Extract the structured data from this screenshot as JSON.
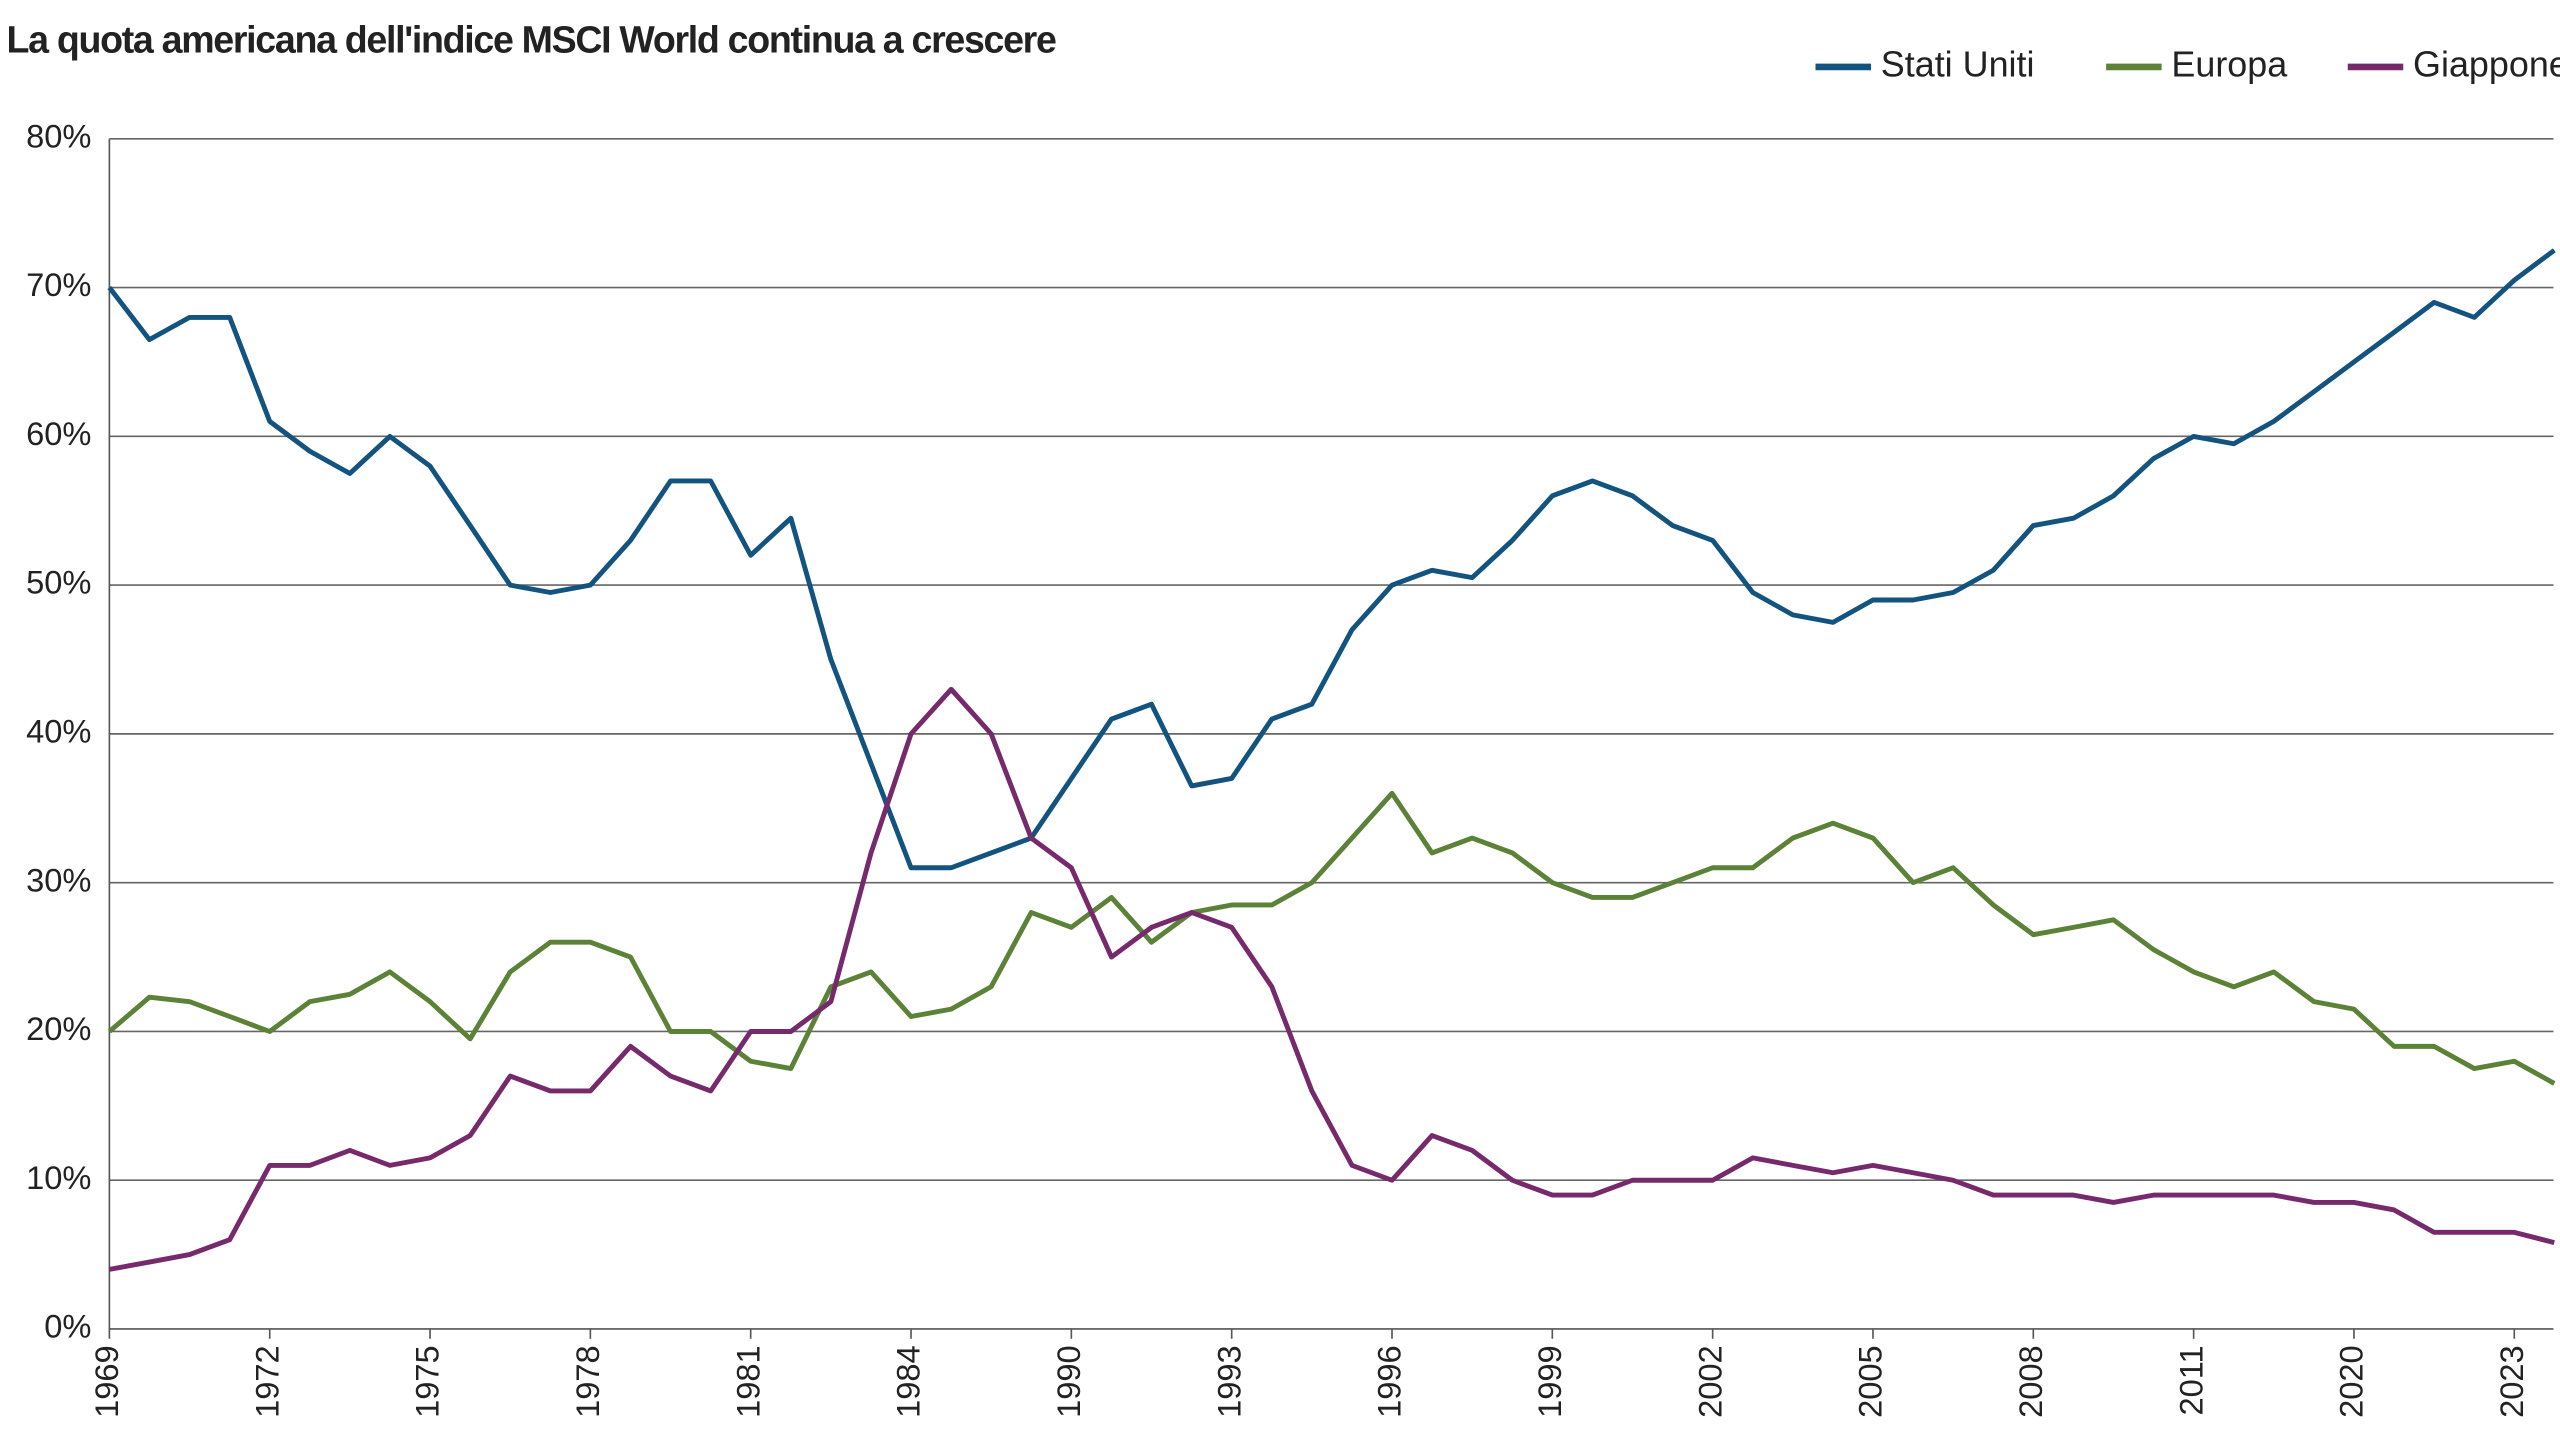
{
  "chart_data": {
    "type": "line",
    "title": "La quota americana dell'indice MSCI World continua a crescere",
    "categories": [
      "1969",
      null,
      null,
      null,
      "1972",
      null,
      null,
      null,
      "1975",
      null,
      null,
      null,
      "1978",
      null,
      null,
      null,
      "1981",
      null,
      null,
      null,
      "1984",
      null,
      null,
      null,
      "1990",
      null,
      null,
      null,
      "1993",
      null,
      null,
      null,
      "1996",
      null,
      null,
      null,
      "1999",
      null,
      null,
      null,
      "2002",
      null,
      null,
      null,
      "2005",
      null,
      null,
      null,
      "2008",
      null,
      null,
      null,
      "2011",
      null,
      null,
      null,
      "2020",
      null,
      null,
      null,
      "2023",
      null
    ],
    "series": [
      {
        "name": "Stati Uniti",
        "color": "#13537f",
        "values": [
          70,
          66.5,
          68,
          68,
          61,
          59,
          57.5,
          60,
          58,
          54,
          50,
          49.5,
          50,
          53,
          57,
          57,
          52,
          54.5,
          45,
          38,
          31,
          31,
          32,
          33,
          37,
          41,
          42,
          36.5,
          37,
          41,
          42,
          47,
          50,
          51,
          50.5,
          53,
          56,
          57,
          56,
          54,
          53,
          49.5,
          48,
          47.5,
          49,
          49,
          49.5,
          51,
          54,
          54.5,
          56,
          58.5,
          60,
          59.5,
          61,
          63,
          65,
          67,
          69,
          68,
          70.5,
          72.5
        ]
      },
      {
        "name": "Europa",
        "color": "#5b8236",
        "values": [
          20,
          22.3,
          22,
          21,
          20,
          22,
          22.5,
          24,
          22,
          19.5,
          24,
          26,
          26,
          25,
          20,
          20,
          18,
          17.5,
          23,
          24,
          21,
          21.5,
          23,
          28,
          27,
          29,
          26,
          28,
          28.5,
          28.5,
          30,
          33,
          36,
          32,
          33,
          32,
          30,
          29,
          29,
          30,
          31,
          31,
          33,
          34,
          33,
          30,
          31,
          28.5,
          26.5,
          27,
          27.5,
          25.5,
          24,
          23,
          24,
          22,
          21.5,
          19,
          19,
          17.5,
          18,
          16.5
        ]
      },
      {
        "name": "Giappone",
        "color": "#772a6b",
        "values": [
          4,
          4.5,
          5,
          6,
          11,
          11,
          12,
          11,
          11.5,
          13,
          17,
          16,
          16,
          19,
          17,
          16,
          20,
          20,
          22,
          32,
          40,
          43,
          40,
          33,
          31,
          25,
          27,
          28,
          27,
          23,
          16,
          11,
          10,
          13,
          12,
          10,
          9,
          9,
          10,
          10,
          10,
          11.5,
          11,
          10.5,
          11,
          10.5,
          10,
          9,
          9,
          9,
          8.5,
          9,
          9,
          9,
          9,
          8.5,
          8.5,
          8,
          6.5,
          6.5,
          6.5,
          5.8
        ]
      }
    ],
    "ylim": [
      0,
      80
    ],
    "yticks": [
      {
        "value": 0,
        "label": "0%"
      },
      {
        "value": 10,
        "label": "10%"
      },
      {
        "value": 20,
        "label": "20%"
      },
      {
        "value": 30,
        "label": "30%"
      },
      {
        "value": 40,
        "label": "40%"
      },
      {
        "value": 50,
        "label": "50%"
      },
      {
        "value": 60,
        "label": "60%"
      },
      {
        "value": 70,
        "label": "70%"
      },
      {
        "value": 80,
        "label": "80%"
      }
    ],
    "grid": true,
    "legend": "top-right"
  }
}
